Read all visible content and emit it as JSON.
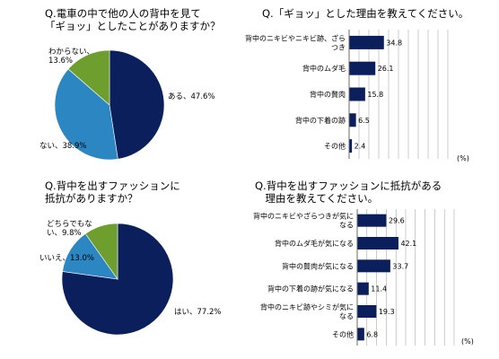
{
  "chart_data": [
    {
      "type": "pie",
      "title": "Q.電車の中で他の人の背中を見て\n「ギョッ」としたことがありますか？",
      "categories": [
        "ある",
        "ない",
        "わからない"
      ],
      "values": [
        47.6,
        38.9,
        13.6
      ],
      "labels": [
        "ある、47.6%",
        "ない、38.9%",
        "わからない、\n13.6%"
      ],
      "colors": [
        "#0b1f5c",
        "#2b86c2",
        "#6e9e2e"
      ]
    },
    {
      "type": "bar",
      "title": "Q.「ギョッ」とした理由を教えてください。",
      "categories": [
        "背中のニキビやニキビ跡、ざら\nつき",
        "背中のムダ毛",
        "背中の贅肉",
        "背中の下着の跡",
        "その他"
      ],
      "values": [
        34.8,
        26.1,
        15.8,
        6.5,
        2.4
      ],
      "value_labels": [
        "34.8",
        "26.1",
        "15.8",
        "6.5",
        "2.4"
      ],
      "unit": "(%)",
      "xlim": [
        0,
        100
      ],
      "color": "#0b1f5c"
    },
    {
      "type": "pie",
      "title": "Q.背中を出すファッションに\n抵抗がありますか？",
      "categories": [
        "はい",
        "いいえ",
        "どちらでもない"
      ],
      "values": [
        77.2,
        13.0,
        9.8
      ],
      "labels": [
        "はい、77.2%",
        "いいえ、13.0%",
        "どちらでもな\nい、9.8%"
      ],
      "colors": [
        "#0b1f5c",
        "#2b86c2",
        "#6e9e2e"
      ]
    },
    {
      "type": "bar",
      "title": "Q.背中を出すファッションに抵抗がある\n　理由を教えてください。",
      "categories": [
        "背中のニキビやざらつきが気に\nなる",
        "背中のムダ毛が気になる",
        "背中の贅肉が気になる",
        "背中の下着の跡が気になる",
        "背中のニキビ跡やシミが気に\nなる",
        "その他"
      ],
      "values": [
        29.6,
        42.1,
        33.7,
        11.4,
        19.3,
        6.8
      ],
      "value_labels": [
        "29.6",
        "42.1",
        "33.7",
        "11.4",
        "19.3",
        "6.8"
      ],
      "unit": "(%)",
      "xlim": [
        0,
        100
      ],
      "color": "#0b1f5c"
    }
  ]
}
